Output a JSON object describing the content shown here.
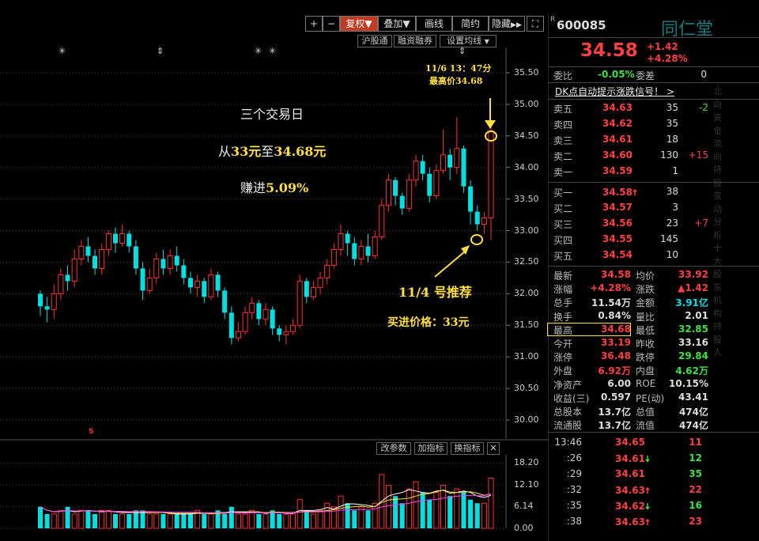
{
  "toolbar": {
    "plus": "+",
    "minus": "−",
    "fuquan": "复权",
    "diejia": "叠加",
    "huaxian": "画线",
    "jianyue": "简约",
    "yincang": "隐藏",
    "fullscreen": "⛶"
  },
  "subbar": {
    "hgt": "沪股通",
    "rzrq": "融资融券",
    "setma": "设置均线"
  },
  "indicator_bar": {
    "gcs": "改参数",
    "jzb": "加指标",
    "hzb": "换指标",
    "close": "✕"
  },
  "markers": {
    "star": "✳",
    "updown": "⇕",
    "s_mark": "S"
  },
  "annotations": {
    "peak_time": "11/6 13：47分",
    "peak_price": "最高价34.68",
    "line1": "三个交易日",
    "line2_a": "从",
    "line2_b": "33元",
    "line2_c": "至",
    "line2_d": "34.68元",
    "line3_a": "赚进",
    "line3_b": "5.09%",
    "rec_date": "11/4 号推荐",
    "buy_price": "买进价格：33元"
  },
  "colors": {
    "up": "#ff3030",
    "down": "#00e0e0",
    "yellow": "#ffe040",
    "bg": "#000000"
  },
  "chart_data": [
    {
      "type": "candlestick",
      "ylim": [
        29.7,
        35.9
      ],
      "yticks": [
        "35.50",
        "35.00",
        "34.50",
        "34.00",
        "33.50",
        "33.00",
        "32.50",
        "32.00",
        "31.50",
        "31.00",
        "30.50",
        "30.00"
      ],
      "candles": [
        [
          32.0,
          31.8,
          31.65,
          32.05
        ],
        [
          31.8,
          31.75,
          31.55,
          31.95
        ],
        [
          31.75,
          32.0,
          31.6,
          32.15
        ],
        [
          32.0,
          32.3,
          31.9,
          32.4
        ],
        [
          32.3,
          32.2,
          32.05,
          32.45
        ],
        [
          32.2,
          32.55,
          32.1,
          32.7
        ],
        [
          32.55,
          32.75,
          32.45,
          32.85
        ],
        [
          32.75,
          32.6,
          32.5,
          32.9
        ],
        [
          32.6,
          32.4,
          32.3,
          32.7
        ],
        [
          32.4,
          32.7,
          32.3,
          32.8
        ],
        [
          32.7,
          32.95,
          32.6,
          33.0
        ],
        [
          32.95,
          32.8,
          32.65,
          33.05
        ],
        [
          32.8,
          32.95,
          32.75,
          33.1
        ],
        [
          32.95,
          32.75,
          32.65,
          33.0
        ],
        [
          32.75,
          32.4,
          32.3,
          32.85
        ],
        [
          32.4,
          32.05,
          31.9,
          32.5
        ],
        [
          32.05,
          32.25,
          32.0,
          32.4
        ],
        [
          32.25,
          32.55,
          32.15,
          32.65
        ],
        [
          32.55,
          32.4,
          32.3,
          32.7
        ],
        [
          32.4,
          32.6,
          32.3,
          32.7
        ],
        [
          32.6,
          32.45,
          32.35,
          32.75
        ],
        [
          32.45,
          32.25,
          32.15,
          32.55
        ],
        [
          32.25,
          32.1,
          32.0,
          32.35
        ],
        [
          32.1,
          32.2,
          31.95,
          32.3
        ],
        [
          32.2,
          31.95,
          31.85,
          32.25
        ],
        [
          31.95,
          32.3,
          31.9,
          32.4
        ],
        [
          32.3,
          32.05,
          31.95,
          32.35
        ],
        [
          32.05,
          31.7,
          31.6,
          32.1
        ],
        [
          31.7,
          31.3,
          31.2,
          31.8
        ],
        [
          31.3,
          31.4,
          31.25,
          31.55
        ],
        [
          31.4,
          31.7,
          31.35,
          31.8
        ],
        [
          31.7,
          31.85,
          31.6,
          31.95
        ],
        [
          31.85,
          31.6,
          31.5,
          31.9
        ],
        [
          31.6,
          31.75,
          31.5,
          31.85
        ],
        [
          31.75,
          31.45,
          31.35,
          31.8
        ],
        [
          31.45,
          31.35,
          31.25,
          31.5
        ],
        [
          31.35,
          31.4,
          31.2,
          31.5
        ],
        [
          31.4,
          31.5,
          31.35,
          31.6
        ],
        [
          31.5,
          32.2,
          31.45,
          32.3
        ],
        [
          32.2,
          31.95,
          31.85,
          32.25
        ],
        [
          31.95,
          32.1,
          31.9,
          32.2
        ],
        [
          32.1,
          32.25,
          32.0,
          32.35
        ],
        [
          32.25,
          32.45,
          32.15,
          32.55
        ],
        [
          32.45,
          32.7,
          32.4,
          32.8
        ],
        [
          32.7,
          32.95,
          32.6,
          33.1
        ],
        [
          32.95,
          32.8,
          32.6,
          33.0
        ],
        [
          32.8,
          32.55,
          32.45,
          32.9
        ],
        [
          32.55,
          32.75,
          32.45,
          32.85
        ],
        [
          32.75,
          32.6,
          32.5,
          32.95
        ],
        [
          32.6,
          32.9,
          32.55,
          33.0
        ],
        [
          32.9,
          33.4,
          32.85,
          33.5
        ],
        [
          33.4,
          33.8,
          33.3,
          33.9
        ],
        [
          33.8,
          33.55,
          33.4,
          33.85
        ],
        [
          33.55,
          33.35,
          33.25,
          33.6
        ],
        [
          33.35,
          33.8,
          33.3,
          33.9
        ],
        [
          33.8,
          34.1,
          33.7,
          34.2
        ],
        [
          34.1,
          33.9,
          33.8,
          34.2
        ],
        [
          33.9,
          33.55,
          33.45,
          34.0
        ],
        [
          33.55,
          33.95,
          33.5,
          34.05
        ],
        [
          33.95,
          34.2,
          33.9,
          34.6
        ],
        [
          34.2,
          34.0,
          33.8,
          34.3
        ],
        [
          34.0,
          34.3,
          33.9,
          34.8
        ],
        [
          34.3,
          33.7,
          33.6,
          34.35
        ],
        [
          33.7,
          33.3,
          33.1,
          33.8
        ],
        [
          33.3,
          33.1,
          33.0,
          33.4
        ],
        [
          33.1,
          33.2,
          32.95,
          33.3
        ],
        [
          33.2,
          34.58,
          32.85,
          34.68
        ]
      ]
    },
    {
      "type": "bar",
      "ylim": [
        0,
        20.5
      ],
      "yticks": [
        "18.20",
        "12.10",
        "6.14",
        "0.00"
      ],
      "values": [
        6,
        4,
        4,
        5,
        6,
        4,
        5,
        5,
        4,
        5,
        5,
        4,
        4,
        4,
        5,
        5,
        4,
        4,
        4,
        4,
        4,
        4,
        4,
        5,
        4,
        4,
        5,
        4,
        6,
        4,
        4,
        5,
        4,
        4,
        5,
        4,
        4,
        4,
        8,
        5,
        4,
        5,
        7,
        6,
        9,
        7,
        5,
        6,
        5,
        7,
        15,
        12,
        9,
        7,
        11,
        13,
        10,
        8,
        10,
        12,
        9,
        11,
        10,
        8,
        7,
        7,
        14
      ]
    }
  ],
  "quote": {
    "r_mark": "R",
    "code": "600085",
    "name": "同仁堂",
    "price": "34.58",
    "chg": "+1.42",
    "chg_pct": "+4.28%",
    "weibi_label": "委比",
    "weibi_value": "-0.05%",
    "weicha_label": "委差",
    "weicha_value": "0",
    "signal_text": "DK点自动提示涨跌信号！",
    "signal_arrow": ">",
    "sell": [
      {
        "label": "卖五",
        "price": "34.63",
        "vol": "35",
        "delta": "-2"
      },
      {
        "label": "卖四",
        "price": "34.62",
        "vol": "35",
        "delta": ""
      },
      {
        "label": "卖三",
        "price": "34.61",
        "vol": "18",
        "delta": ""
      },
      {
        "label": "卖二",
        "price": "34.60",
        "vol": "130",
        "delta": "+15"
      },
      {
        "label": "卖一",
        "price": "34.59",
        "vol": "1",
        "delta": ""
      }
    ],
    "buy": [
      {
        "label": "买一",
        "price": "34.58",
        "arrow": "🠅",
        "vol": "38",
        "delta": ""
      },
      {
        "label": "买二",
        "price": "34.57",
        "arrow": "",
        "vol": "3",
        "delta": ""
      },
      {
        "label": "买三",
        "price": "34.56",
        "arrow": "",
        "vol": "23",
        "delta": "+7"
      },
      {
        "label": "买四",
        "price": "34.55",
        "arrow": "",
        "vol": "145",
        "delta": ""
      },
      {
        "label": "买五",
        "price": "34.54",
        "arrow": "",
        "vol": "10",
        "delta": ""
      }
    ],
    "stats": [
      {
        "l1": "最新",
        "v1": "34.58",
        "c1": "up",
        "l2": "均价",
        "v2": "33.92",
        "c2": "up"
      },
      {
        "l1": "涨幅",
        "v1": "+4.28%",
        "c1": "up",
        "l2": "涨跌",
        "v2": "▲1.42",
        "c2": "up"
      },
      {
        "l1": "总手",
        "v1": "11.54万",
        "c1": "wht",
        "l2": "金额",
        "v2": "3.91亿",
        "c2": "dn"
      },
      {
        "l1": "换手",
        "v1": "0.84%",
        "c1": "wht",
        "l2": "量比",
        "v2": "2.01",
        "c2": "wht"
      },
      {
        "l1": "最高",
        "v1": "34.68",
        "c1": "up",
        "l2": "最低",
        "v2": "32.85",
        "c2": "grn"
      },
      {
        "l1": "今开",
        "v1": "33.19",
        "c1": "up",
        "l2": "昨收",
        "v2": "33.16",
        "c2": "wht"
      },
      {
        "l1": "涨停",
        "v1": "36.48",
        "c1": "up",
        "l2": "跌停",
        "v2": "29.84",
        "c2": "grn"
      },
      {
        "l1": "外盘",
        "v1": "6.92万",
        "c1": "up",
        "l2": "内盘",
        "v2": "4.62万",
        "c2": "grn"
      },
      {
        "l1": "净资产",
        "v1": "6.00",
        "c1": "wht",
        "l2": "ROE",
        "v2": "10.15%",
        "c2": "wht"
      },
      {
        "l1": "收益(三)",
        "v1": "0.597",
        "c1": "wht",
        "l2": "PE(动)",
        "v2": "43.41",
        "c2": "wht"
      },
      {
        "l1": "总股本",
        "v1": "13.7亿",
        "c1": "wht",
        "l2": "总值",
        "v2": "474亿",
        "c2": "wht"
      },
      {
        "l1": "流通股",
        "v1": "13.7亿",
        "c1": "wht",
        "l2": "流值",
        "v2": "474亿",
        "c2": "wht"
      }
    ],
    "ticks": [
      {
        "time": "13:46",
        "price": "34.65",
        "arrow": "",
        "vol": "11",
        "pc": "up",
        "vc": "up"
      },
      {
        "time": ":26",
        "price": "34.61",
        "arrow": "🠇",
        "vol": "12",
        "pc": "up",
        "vc": "grn"
      },
      {
        "time": ":29",
        "price": "34.61",
        "arrow": "",
        "vol": "35",
        "pc": "up",
        "vc": "grn"
      },
      {
        "time": ":32",
        "price": "34.63",
        "arrow": "🠅",
        "vol": "22",
        "pc": "up",
        "vc": "up"
      },
      {
        "time": ":35",
        "price": "34.62",
        "arrow": "🠇",
        "vol": "16",
        "pc": "up",
        "vc": "grn"
      },
      {
        "time": ":38",
        "price": "34.63",
        "arrow": "🠅",
        "vol": "23",
        "pc": "up",
        "vc": "up"
      }
    ],
    "side_strip": [
      "北",
      "向",
      "资",
      "金",
      "流",
      "向",
      "持",
      "股",
      "变",
      "动",
      "分",
      "析",
      "十",
      "大",
      "股",
      "东",
      "机",
      "构",
      "持",
      "股",
      "人"
    ]
  }
}
